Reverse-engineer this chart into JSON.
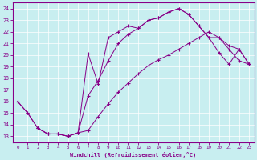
{
  "bg_color": "#c8eef0",
  "line_color": "#880088",
  "xlabel": "Windchill (Refroidissement éolien,°C)",
  "xlim": [
    -0.5,
    23.5
  ],
  "ylim": [
    12.5,
    24.5
  ],
  "xticks": [
    0,
    1,
    2,
    3,
    4,
    5,
    6,
    7,
    8,
    9,
    10,
    11,
    12,
    13,
    14,
    15,
    16,
    17,
    18,
    19,
    20,
    21,
    22,
    23
  ],
  "yticks": [
    13,
    14,
    15,
    16,
    17,
    18,
    19,
    20,
    21,
    22,
    23,
    24
  ],
  "curve1_x": [
    0,
    1,
    2,
    3,
    4,
    5,
    6,
    7,
    8,
    9,
    10,
    11,
    12,
    13,
    14,
    15,
    16,
    17,
    18,
    19,
    20,
    21,
    22,
    23
  ],
  "curve1_y": [
    16.0,
    15.0,
    13.7,
    13.2,
    13.2,
    13.0,
    13.3,
    20.1,
    17.5,
    21.5,
    22.0,
    22.5,
    22.3,
    23.0,
    23.2,
    23.7,
    24.0,
    23.5,
    22.5,
    21.5,
    20.2,
    19.2,
    20.5,
    19.2
  ],
  "curve2_x": [
    0,
    1,
    2,
    3,
    4,
    5,
    6,
    7,
    8,
    9,
    10,
    11,
    12,
    13,
    14,
    15,
    16,
    17,
    18,
    19,
    20,
    21,
    22,
    23
  ],
  "curve2_y": [
    16.0,
    15.0,
    13.7,
    13.2,
    13.2,
    13.0,
    13.3,
    13.5,
    14.7,
    15.8,
    16.8,
    17.6,
    18.4,
    19.1,
    19.6,
    20.0,
    20.5,
    21.0,
    21.5,
    22.0,
    21.5,
    20.5,
    19.5,
    19.2
  ],
  "curve3_x": [
    2,
    3,
    4,
    5,
    6,
    7,
    8,
    9,
    10,
    11,
    12,
    13,
    14,
    15,
    16,
    17,
    18,
    19,
    20,
    21,
    22,
    23
  ],
  "curve3_y": [
    13.7,
    13.2,
    13.2,
    13.0,
    13.3,
    16.5,
    17.8,
    19.5,
    21.0,
    21.8,
    22.3,
    23.0,
    23.2,
    23.7,
    24.0,
    23.5,
    22.5,
    21.5,
    21.5,
    20.8,
    20.5,
    19.2
  ],
  "figsize": [
    3.2,
    2.0
  ],
  "dpi": 100
}
